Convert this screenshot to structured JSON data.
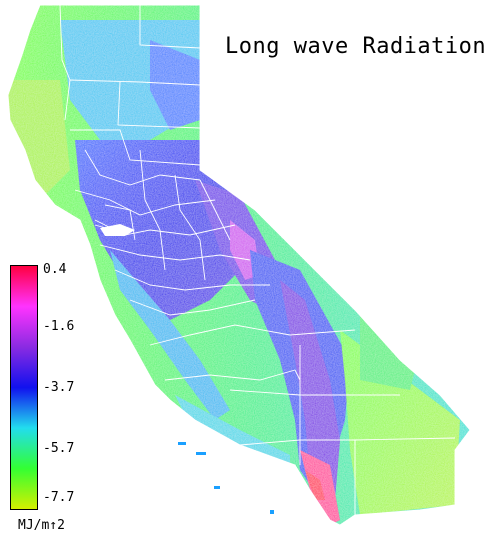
{
  "title": "Long wave Radiation",
  "legend": {
    "ticks": [
      "0.4",
      "-1.6",
      "-3.7",
      "-5.7",
      "-7.7"
    ],
    "unit": "MJ/m↑2",
    "range": [
      -7.7,
      0.4
    ],
    "colors": [
      "#d4f000",
      "#33ff33",
      "#22ddee",
      "#1111ee",
      "#8a2be2",
      "#ff33ff",
      "#ff0040"
    ]
  },
  "map_colors": {
    "background": "#ffffff",
    "boundaries": "#ffffff"
  }
}
